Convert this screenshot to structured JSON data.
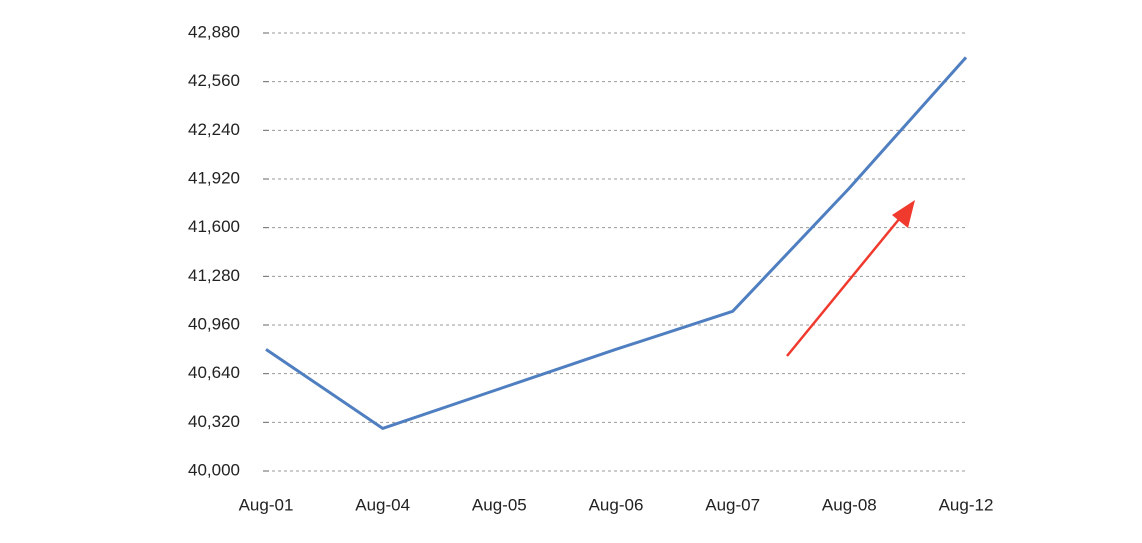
{
  "chart_data": {
    "type": "line",
    "categories": [
      "Aug-01",
      "Aug-04",
      "Aug-05",
      "Aug-06",
      "Aug-07",
      "Aug-08",
      "Aug-12"
    ],
    "series": [
      {
        "color": "#4f7fc0",
        "values": [
          40800,
          40280,
          40540,
          40800,
          41050,
          41860,
          42720
        ]
      }
    ],
    "ylim": [
      40000,
      42880
    ],
    "yticks": [
      {
        "value": 40000,
        "label": "40,000"
      },
      {
        "value": 40320,
        "label": "40,320"
      },
      {
        "value": 40640,
        "label": "40,640"
      },
      {
        "value": 40960,
        "label": "40,960"
      },
      {
        "value": 41280,
        "label": "41,280"
      },
      {
        "value": 41600,
        "label": "41,600"
      },
      {
        "value": 41920,
        "label": "41,920"
      },
      {
        "value": 42240,
        "label": "42,240"
      },
      {
        "value": 42560,
        "label": "42,560"
      },
      {
        "value": 42880,
        "label": "42,880"
      }
    ],
    "grid": true
  }
}
